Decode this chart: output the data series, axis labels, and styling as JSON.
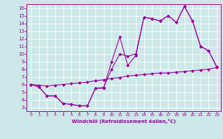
{
  "xlabel": "Windchill (Refroidissement éolien,°C)",
  "bg_color": "#cde8e8",
  "line_color": "#990099",
  "xlim": [
    -0.5,
    23.5
  ],
  "ylim": [
    2.5,
    16.5
  ],
  "xticks": [
    0,
    1,
    2,
    3,
    4,
    5,
    6,
    7,
    8,
    9,
    10,
    11,
    12,
    13,
    14,
    15,
    16,
    17,
    18,
    19,
    20,
    21,
    22,
    23
  ],
  "yticks": [
    3,
    4,
    5,
    6,
    7,
    8,
    9,
    10,
    11,
    12,
    13,
    14,
    15,
    16
  ],
  "line1_x": [
    0,
    1,
    2,
    3,
    4,
    5,
    6,
    7,
    8,
    9,
    10,
    11,
    12,
    13,
    14,
    15,
    16,
    17,
    18,
    19,
    20,
    21,
    22,
    23
  ],
  "line1_y": [
    6.0,
    5.7,
    4.5,
    4.5,
    3.5,
    3.4,
    3.2,
    3.2,
    5.5,
    5.5,
    9.0,
    12.2,
    8.5,
    9.8,
    14.8,
    14.6,
    14.3,
    15.0,
    14.1,
    16.2,
    14.3,
    11.0,
    10.4,
    8.3
  ],
  "line2_x": [
    0,
    1,
    2,
    3,
    4,
    5,
    6,
    7,
    8,
    9,
    10,
    11,
    12,
    13,
    14,
    15,
    16,
    17,
    18,
    19,
    20,
    21,
    22,
    23
  ],
  "line2_y": [
    6.0,
    5.7,
    4.5,
    4.5,
    3.5,
    3.4,
    3.2,
    3.2,
    5.5,
    5.6,
    8.0,
    10.0,
    9.7,
    10.0,
    14.8,
    14.6,
    14.3,
    15.0,
    14.1,
    16.2,
    14.3,
    11.0,
    10.4,
    8.3
  ],
  "line3_x": [
    0,
    1,
    2,
    3,
    4,
    5,
    6,
    7,
    8,
    9,
    10,
    11,
    12,
    13,
    14,
    15,
    16,
    17,
    18,
    19,
    20,
    21,
    22,
    23
  ],
  "line3_y": [
    6.0,
    5.9,
    5.8,
    5.9,
    6.0,
    6.1,
    6.2,
    6.3,
    6.5,
    6.6,
    6.8,
    6.9,
    7.1,
    7.2,
    7.3,
    7.4,
    7.5,
    7.5,
    7.6,
    7.7,
    7.8,
    7.9,
    8.0,
    8.2
  ]
}
